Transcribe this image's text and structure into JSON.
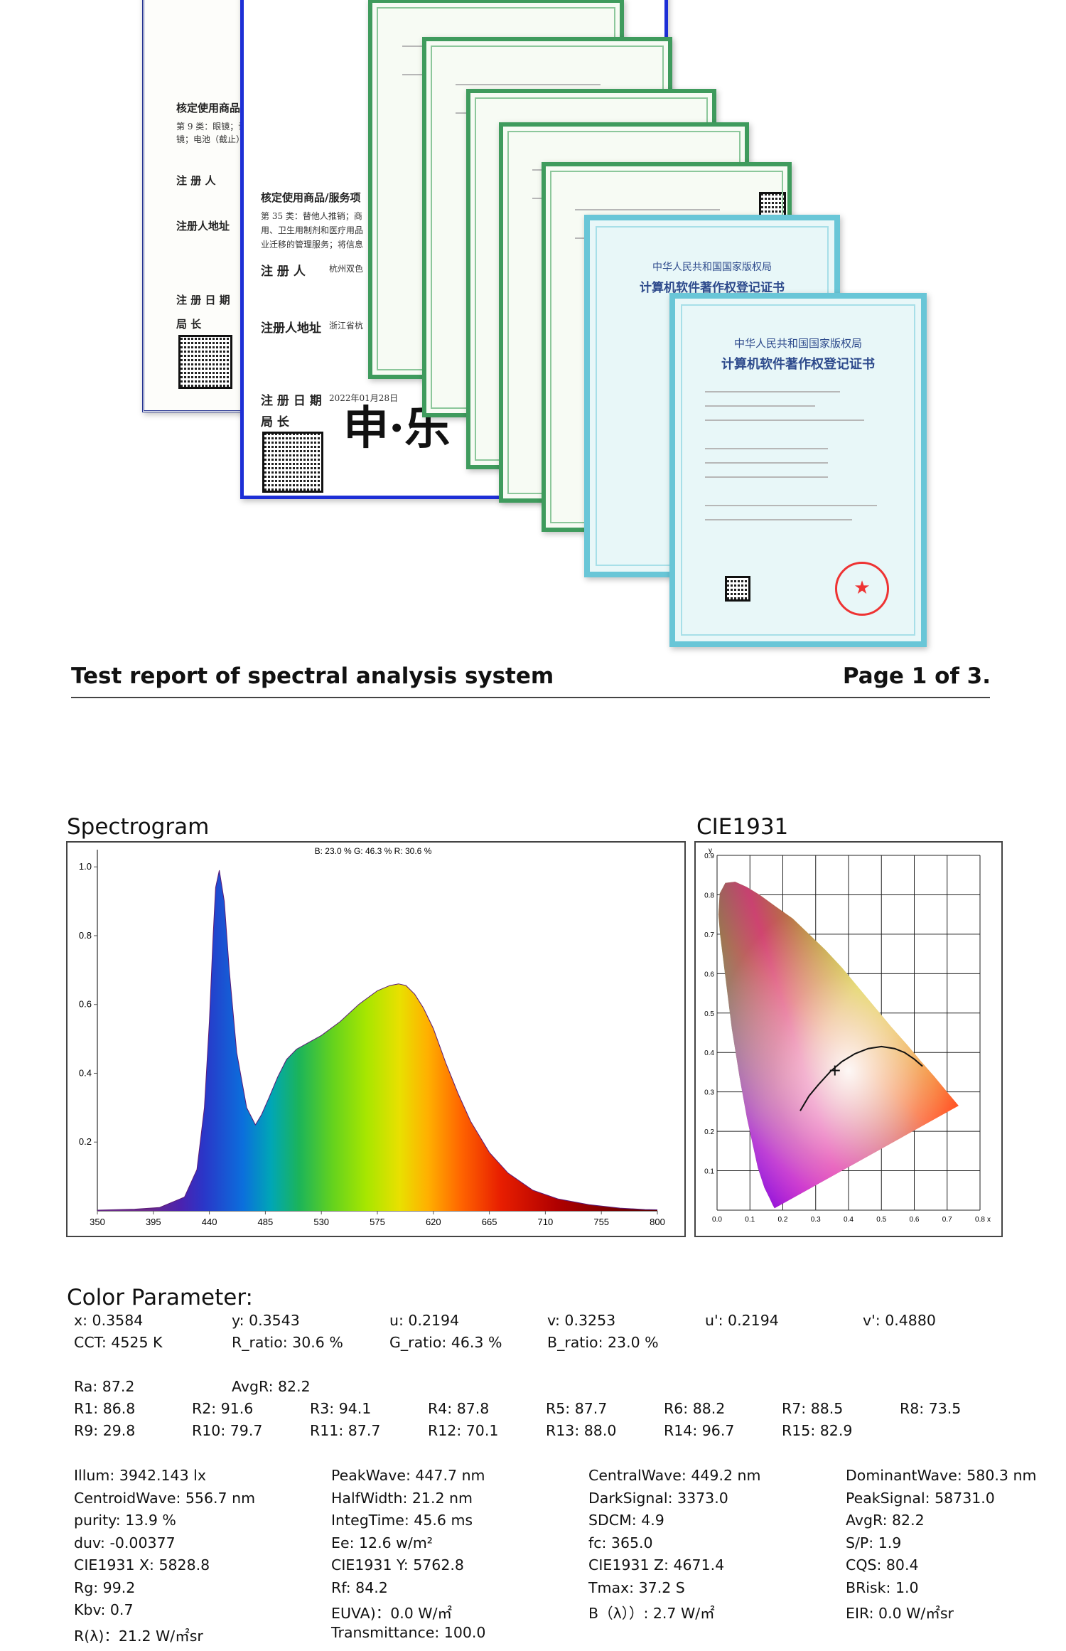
{
  "certificates": {
    "trademark_1": {
      "approved_goods": "核定使用商品",
      "class_line": "第 9 类：眼镜；计",
      "class_line2": "镜；电池（截止）",
      "registrant": "注 册 人",
      "address": "注册人地址",
      "reg_date": "注 册 日 期",
      "director": "局 长"
    },
    "trademark_2": {
      "approved_goods": "核定使用商品/服务项",
      "class_line": "第 35 类：替他人推销；商",
      "class_line2": "用、卫生用制剂和医疗用品",
      "class_line3": "业迁移的管理服务；将信息",
      "registrant": "注 册 人",
      "registrant_value": "杭州双色",
      "address": "注册人地址",
      "address_value": "浙江省杭",
      "reg_date": "注 册 日 期",
      "reg_date_value": "2022年01月28日",
      "director": "局 长"
    },
    "software": {
      "office": "中华人民共和国国家版权局",
      "title": "计算机软件著作权登记证书"
    }
  },
  "report": {
    "title": "Test report of spectral analysis system",
    "page": "Page 1 of 3."
  },
  "spectrogram": {
    "title": "Spectrogram",
    "legend": "B: 23.0 %  G: 46.3 %  R: 30.6 %"
  },
  "cie": {
    "title": "CIE1931",
    "x_label": "x",
    "y_label": "y",
    "x_ticks": [
      "0.0",
      "0.1",
      "0.2",
      "0.3",
      "0.4",
      "0.5",
      "0.6",
      "0.7",
      "0.8"
    ],
    "y_ticks": [
      "0.1",
      "0.2",
      "0.3",
      "0.4",
      "0.5",
      "0.6",
      "0.7",
      "0.8",
      "0.9"
    ],
    "point": {
      "x": 0.3584,
      "y": 0.3543
    }
  },
  "chart_data": {
    "type": "area",
    "title": "Spectrogram",
    "xlabel": "",
    "ylabel": "",
    "xlim": [
      350,
      800
    ],
    "ylim": [
      0,
      1.05
    ],
    "x_ticks": [
      "350",
      "395",
      "440",
      "485",
      "530",
      "575",
      "620",
      "665",
      "710",
      "755",
      "800"
    ],
    "y_ticks": [
      "0.2",
      "0.4",
      "0.6",
      "0.8",
      "1.0"
    ],
    "x": [
      350,
      380,
      400,
      420,
      430,
      436,
      440,
      443,
      445,
      448,
      452,
      456,
      462,
      470,
      477,
      482,
      488,
      495,
      502,
      510,
      520,
      530,
      545,
      560,
      575,
      585,
      592,
      598,
      605,
      612,
      620,
      630,
      640,
      650,
      665,
      680,
      700,
      720,
      745,
      770,
      790,
      800
    ],
    "values": [
      0.002,
      0.005,
      0.01,
      0.04,
      0.12,
      0.3,
      0.55,
      0.8,
      0.94,
      0.99,
      0.9,
      0.7,
      0.46,
      0.3,
      0.25,
      0.28,
      0.33,
      0.39,
      0.44,
      0.47,
      0.49,
      0.51,
      0.55,
      0.6,
      0.64,
      0.655,
      0.66,
      0.655,
      0.63,
      0.59,
      0.53,
      0.43,
      0.34,
      0.26,
      0.17,
      0.11,
      0.06,
      0.035,
      0.018,
      0.008,
      0.004,
      0.003
    ],
    "legend": "B: 23.0 %  G: 46.3 %  R: 30.6 %"
  },
  "color_parameter": {
    "title": "Color Parameter:",
    "row1": [
      "x: 0.3584",
      "y: 0.3543",
      "u: 0.2194",
      "v: 0.3253",
      "u': 0.2194",
      "v': 0.4880"
    ],
    "row2": [
      "CCT: 4525 K",
      "R_ratio: 30.6 %",
      "G_ratio: 46.3 %",
      "B_ratio: 23.0 %"
    ],
    "ra": [
      "Ra: 87.2",
      "AvgR: 82.2"
    ],
    "r_row1": [
      "R1: 86.8",
      "R2: 91.6",
      "R3: 94.1",
      "R4: 87.8",
      "R5: 87.7",
      "R6: 88.2",
      "R7: 88.5",
      "R8: 73.5"
    ],
    "r_row2": [
      "R9: 29.8",
      "R10: 79.7",
      "R11: 87.7",
      "R12: 70.1",
      "R13: 88.0",
      "R14: 96.7",
      "R15: 82.9"
    ],
    "col1": [
      "Illum: 3942.143 lx",
      "CentroidWave: 556.7 nm",
      "purity: 13.9 %",
      "duv: -0.00377",
      "CIE1931 X: 5828.8",
      "Rg: 99.2",
      "Kbv: 0.7",
      "R(λ)：21.2 W/㎡sr"
    ],
    "col2": [
      "PeakWave: 447.7 nm",
      "HalfWidth: 21.2 nm",
      "IntegTime: 45.6 ms",
      "Ee: 12.6 w/m²",
      "CIE1931 Y: 5762.8",
      "Rf: 84.2",
      "EUVA)：0.0 W/㎡",
      "Transmittance: 100.0"
    ],
    "col3": [
      "CentralWave: 449.2 nm",
      "DarkSignal: 3373.0",
      "SDCM: 4.9",
      "fc: 365.0",
      "CIE1931 Z: 4671.4",
      "Tmax: 37.2 S",
      "B（λ））: 2.7 W/㎡"
    ],
    "col4": [
      "DominantWave: 580.3 nm",
      "PeakSignal: 58731.0",
      "AvgR: 82.2",
      "S/P: 1.9",
      "CQS: 80.4",
      "BRisk: 1.0",
      "EIR: 0.0 W/㎡sr"
    ]
  }
}
